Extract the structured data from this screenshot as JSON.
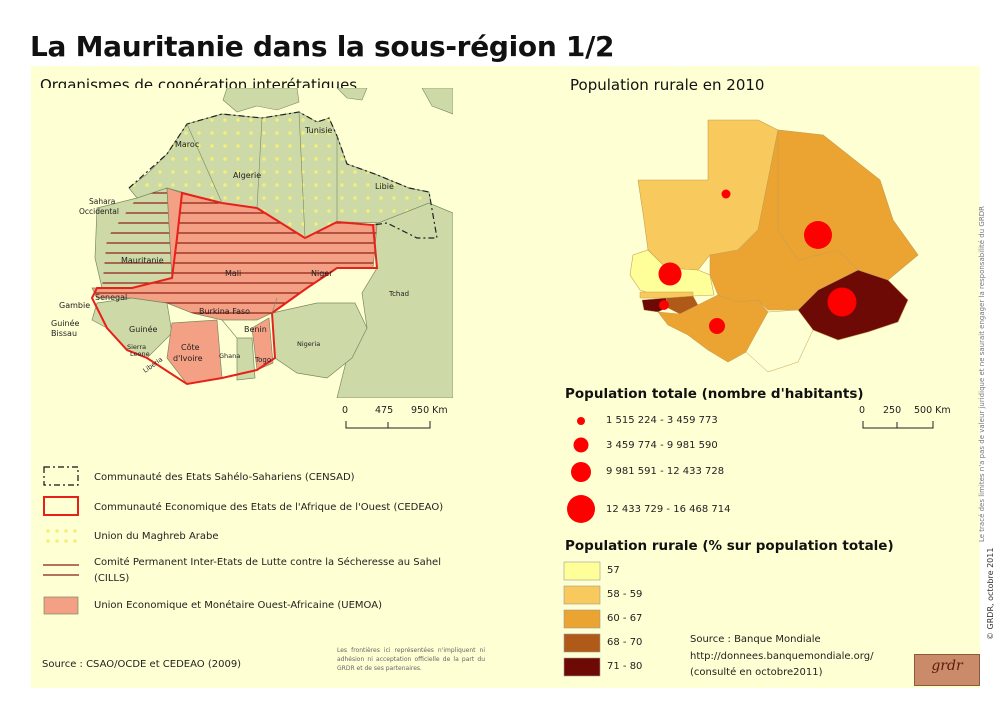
{
  "title": "La Mauritanie dans la sous-région 1/2",
  "left": {
    "heading": "Organismes de coopération interétatiques",
    "labels": {
      "maroc": "Maroc",
      "tunisie": "Tunisie",
      "algerie": "Algerie",
      "libie": "Libie",
      "sahara1": "Sahara",
      "sahara2": "Occidental",
      "mauritanie": "Mauritanie",
      "mali": "Mali",
      "niger": "Niger",
      "tchad": "Tchad",
      "senegal": "Senegal",
      "gambie": "Gambie",
      "guineebissau1": "Guinée",
      "guineebissau2": "Bissau",
      "burkina": "Burkina Faso",
      "guinee": "Guinée",
      "benin": "Benin",
      "sierra1": "Sierra",
      "sierra2": "Leone",
      "liberia": "Liberia",
      "cote1": "Côte",
      "cote2": "d'Ivoire",
      "ghana": "Ghana",
      "togo": "Togo",
      "nigeria": "Nigeria"
    },
    "scale": {
      "t0": "0",
      "t1": "475",
      "t2": "950 Km"
    },
    "legend": [
      "Communauté des Etats Sahélo-Sahariens (CENSAD)",
      "Communauté Economique des Etats de l'Afrique de l'Ouest (CEDEAO)",
      "Union du Maghreb Arabe",
      "Comité Permanent Inter-Etats de Lutte contre la Sécheresse au Sahel",
      "(CILLS)",
      "Union Economique et Monétaire Ouest-Africaine (UEMOA)"
    ],
    "source": "Source : CSAO/OCDE et CEDEAO (2009)",
    "disclaimer": "Les frontières ici représentées n'impliquent ni adhésion ni acceptation officielle de la part du GRDR et de ses partenaires."
  },
  "right": {
    "heading": "Population rurale en 2010",
    "scale": {
      "t0": "0",
      "t1": "250",
      "t2": "500 Km"
    },
    "pop_heading": "Population totale (nombre d'habitants)",
    "pop_classes": [
      "1 515 224 - 3 459 773",
      "3 459 774 - 9 981 590",
      "9 981 591 - 12 433 728",
      "12 433 729 - 16 468 714"
    ],
    "rural_heading": "Population rurale (% sur population totale)",
    "rural_classes": [
      "57",
      "58 - 59",
      "60 - 67",
      "68 - 70",
      "71 - 80"
    ],
    "source_lines": [
      "Source : Banque Mondiale",
      "http://donnees.banquemondiale.org/",
      "(consulté en octobre2011)"
    ]
  },
  "colors": {
    "panel": "#ffffd4",
    "land": "#cdd9a7",
    "uemoa": "#f4a085",
    "cedeao_border": "#e8201a",
    "cills_lines": "#8b1c13",
    "uma_dots": "#f3f07a",
    "rural": [
      "#ffff99",
      "#f8c95c",
      "#eba432",
      "#b05a1a",
      "#6e0a06"
    ],
    "circle": "#ff0000"
  },
  "credits": {
    "vertical_note": "Le tracé des limites n'a pas de valeur juridique et ne saurait engager la responsabilité du GRDR",
    "copyright": "© GRDR, octobre 2011",
    "logo": "grdr"
  }
}
